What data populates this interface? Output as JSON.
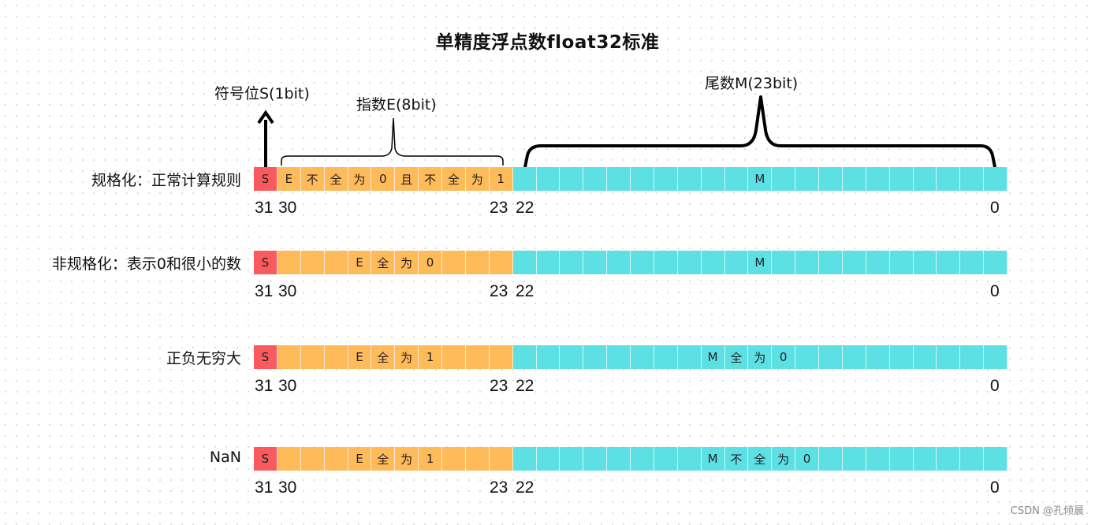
{
  "title": "单精度浮点数float32标准",
  "annotations": {
    "sign": "符号位S(1bit)",
    "exponent": "指数E(8bit)",
    "mantissa": "尾数M(23bit)"
  },
  "bit_positions": {
    "p31": "31",
    "p30": "30",
    "p23": "23",
    "p22": "22",
    "p0": "0"
  },
  "rows": [
    {
      "label": "规格化：正常计算规则",
      "sign": "S",
      "exponent_chars": [
        "E",
        "不",
        "全",
        "为",
        "0",
        "且",
        "不",
        "全",
        "为",
        "1"
      ],
      "mantissa_chars": [
        "M"
      ]
    },
    {
      "label": "非规格化：表示0和很小的数",
      "sign": "S",
      "exponent_chars": [
        "E",
        "全",
        "为",
        "0"
      ],
      "mantissa_chars": [
        "M"
      ]
    },
    {
      "label": "正负无穷大",
      "sign": "S",
      "exponent_chars": [
        "E",
        "全",
        "为",
        "1"
      ],
      "mantissa_chars": [
        "M",
        "全",
        "为",
        "0"
      ]
    },
    {
      "label": "NaN",
      "sign": "S",
      "exponent_chars": [
        "E",
        "全",
        "为",
        "1"
      ],
      "mantissa_chars": [
        "M",
        "不",
        "全",
        "为",
        "0"
      ]
    }
  ],
  "colors": {
    "sign": "#f85a5e",
    "exponent": "#ffba5a",
    "mantissa": "#5de0e4"
  },
  "watermark": "CSDN @孔倾晨"
}
